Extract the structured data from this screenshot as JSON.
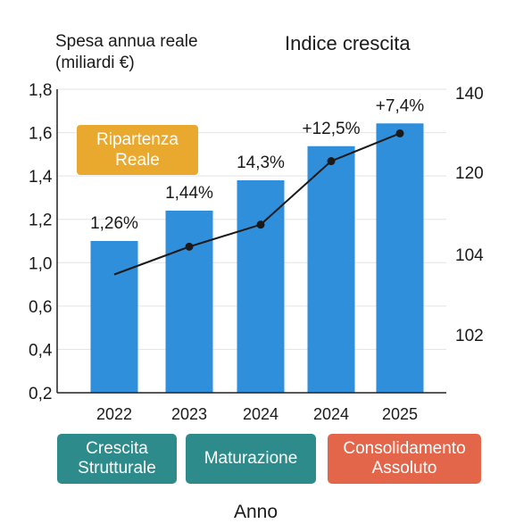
{
  "y_title": {
    "line1": "Spesa annua reale",
    "line2": "(miliardi €)"
  },
  "y2_title": "Indice crescita",
  "x_title": "Anno",
  "callout": {
    "line1": "Ripartenza",
    "line2": "Reale",
    "color": "#E9A82E"
  },
  "phases": [
    {
      "line1": "Crescita",
      "line2": "Strutturale",
      "color": "#2E8B8B"
    },
    {
      "line1": "Maturazione",
      "line2": "",
      "color": "#2E8B8B"
    },
    {
      "line1": "Consolidamento",
      "line2": "Assoluto",
      "color": "#E3654A"
    }
  ],
  "colors": {
    "bar": "#2F8FDB",
    "line": "#1a1a1a",
    "grid": "#e3e3e3"
  },
  "chart_data": {
    "type": "bar",
    "categories": [
      "2022",
      "2023",
      "2024",
      "2024",
      "2025"
    ],
    "left_ticks": [
      "0,2",
      "0,4",
      "0,6",
      "1,0",
      "1,2",
      "1,4",
      "1,6",
      "1,8"
    ],
    "right_ticks": [
      "102",
      "104",
      "120",
      "140"
    ],
    "series": [
      {
        "type": "bar",
        "values": [
          1.0,
          1.16,
          1.32,
          1.5,
          1.62
        ],
        "labels": [
          "1,26%",
          "1,44%",
          "14,3%",
          "+12,5%",
          "+7,4%"
        ]
      },
      {
        "type": "line",
        "axis": "right",
        "values": [
          103.5,
          105.5,
          109.8,
          122.8,
          129.8
        ]
      }
    ],
    "grid": true
  }
}
